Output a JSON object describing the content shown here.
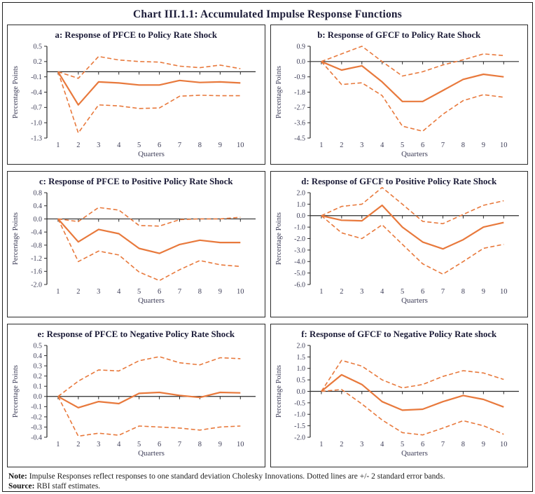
{
  "title": "Chart III.1.1: Accumulated Impulse Response Functions",
  "note": {
    "label": "Note:",
    "text": "Impulse Responses reflect responses to one standard deviation Cholesky Innovations. Dotted lines are +/- 2 standard error bands."
  },
  "source": {
    "label": "Source:",
    "text": "RBI staff estimates."
  },
  "colors": {
    "line": "#E8793C",
    "axis": "#2b2b2b",
    "title_text": "#1c1c38",
    "tick_text": "#3d3d57"
  },
  "chart_data": [
    {
      "id": "a",
      "type": "line",
      "title": "a: Response of PFCE to Policy Rate Shock",
      "xlabel": "Quarters",
      "ylabel": "Percentage Points",
      "x": [
        1,
        2,
        3,
        4,
        5,
        6,
        7,
        8,
        9,
        10
      ],
      "ylim": [
        -1.3,
        0.5
      ],
      "yticks": [
        0.5,
        0.2,
        -0.1,
        -0.4,
        -0.7,
        -1.0,
        -1.3
      ],
      "grid": false,
      "legend": "none",
      "series": [
        {
          "name": "mean",
          "style": "solid",
          "values": [
            0,
            -0.65,
            -0.2,
            -0.22,
            -0.26,
            -0.26,
            -0.17,
            -0.21,
            -0.2,
            -0.22
          ]
        },
        {
          "name": "upper-band",
          "style": "dashed",
          "values": [
            0,
            -0.13,
            0.3,
            0.23,
            0.2,
            0.19,
            0.11,
            0.08,
            0.13,
            0.06
          ]
        },
        {
          "name": "lower-band",
          "style": "dashed",
          "values": [
            0,
            -1.2,
            -0.65,
            -0.67,
            -0.72,
            -0.71,
            -0.48,
            -0.46,
            -0.47,
            -0.47
          ]
        }
      ]
    },
    {
      "id": "b",
      "type": "line",
      "title": "b: Response of GFCF to Policy Rate Shock",
      "xlabel": "Quarters",
      "ylabel": "Percentage Points",
      "x": [
        1,
        2,
        3,
        4,
        5,
        6,
        7,
        8,
        9,
        10
      ],
      "ylim": [
        -4.5,
        0.9
      ],
      "yticks": [
        0.9,
        0.0,
        -0.9,
        -1.8,
        -2.7,
        -3.6,
        -4.5
      ],
      "grid": false,
      "legend": "none",
      "series": [
        {
          "name": "mean",
          "style": "solid",
          "values": [
            0,
            -0.5,
            -0.25,
            -1.2,
            -2.35,
            -2.35,
            -1.7,
            -1.05,
            -0.75,
            -0.9
          ]
        },
        {
          "name": "upper-band",
          "style": "dashed",
          "values": [
            0,
            0.45,
            0.9,
            0.0,
            -0.85,
            -0.6,
            -0.2,
            0.1,
            0.45,
            0.35
          ]
        },
        {
          "name": "lower-band",
          "style": "dashed",
          "values": [
            0,
            -1.35,
            -1.25,
            -2.0,
            -3.8,
            -4.1,
            -3.1,
            -2.3,
            -1.95,
            -2.1
          ]
        }
      ]
    },
    {
      "id": "c",
      "type": "line",
      "title": "c: Response of PFCE to Positive Policy Rate Shock",
      "xlabel": "Quarters",
      "ylabel": "Percentage Points",
      "x": [
        1,
        2,
        3,
        4,
        5,
        6,
        7,
        8,
        9,
        10
      ],
      "ylim": [
        -2.0,
        0.8
      ],
      "yticks": [
        0.8,
        0.4,
        0.0,
        -0.4,
        -0.8,
        -1.2,
        -1.6,
        -2.0
      ],
      "grid": false,
      "legend": "none",
      "series": [
        {
          "name": "mean",
          "style": "solid",
          "values": [
            0,
            -0.7,
            -0.32,
            -0.45,
            -0.9,
            -1.05,
            -0.78,
            -0.65,
            -0.72,
            -0.72
          ]
        },
        {
          "name": "upper-band",
          "style": "dashed",
          "values": [
            0,
            -0.08,
            0.35,
            0.27,
            -0.2,
            -0.22,
            -0.02,
            0.0,
            0.0,
            0.05
          ]
        },
        {
          "name": "lower-band",
          "style": "dashed",
          "values": [
            0,
            -1.3,
            -0.98,
            -1.1,
            -1.62,
            -1.88,
            -1.55,
            -1.27,
            -1.4,
            -1.45
          ]
        }
      ]
    },
    {
      "id": "d",
      "type": "line",
      "title": "d: Response of GFCF to Positive Policy Rate Shock",
      "xlabel": "Quarters",
      "ylabel": "Percentage Points",
      "x": [
        1,
        2,
        3,
        4,
        5,
        6,
        7,
        8,
        9,
        10
      ],
      "ylim": [
        -6.0,
        2.0
      ],
      "yticks": [
        2.0,
        1.0,
        0.0,
        -1.0,
        -2.0,
        -3.0,
        -4.0,
        -5.0,
        -6.0
      ],
      "grid": false,
      "legend": "none",
      "series": [
        {
          "name": "mean",
          "style": "solid",
          "values": [
            0,
            -0.4,
            -0.45,
            0.9,
            -1.0,
            -2.3,
            -2.9,
            -2.1,
            -1.0,
            -0.6
          ]
        },
        {
          "name": "upper-band",
          "style": "dashed",
          "values": [
            0,
            0.8,
            1.0,
            2.45,
            1.0,
            -0.5,
            -0.7,
            0.1,
            0.9,
            1.3
          ]
        },
        {
          "name": "lower-band",
          "style": "dashed",
          "values": [
            0,
            -1.5,
            -2.0,
            -0.8,
            -2.5,
            -4.2,
            -5.1,
            -4.0,
            -2.85,
            -2.5
          ]
        }
      ]
    },
    {
      "id": "e",
      "type": "line",
      "title": "e: Response of PFCE to Negative Policy Rate Shock",
      "xlabel": "Quarters",
      "ylabel": "Percentage Points",
      "x": [
        1,
        2,
        3,
        4,
        5,
        6,
        7,
        8,
        9,
        10
      ],
      "ylim": [
        -0.4,
        0.5
      ],
      "yticks": [
        0.5,
        0.4,
        0.3,
        0.2,
        0.1,
        0.0,
        -0.1,
        -0.2,
        -0.3,
        -0.4
      ],
      "grid": false,
      "legend": "none",
      "series": [
        {
          "name": "mean",
          "style": "solid",
          "values": [
            0,
            -0.11,
            -0.05,
            -0.07,
            0.03,
            0.04,
            0.01,
            -0.01,
            0.04,
            0.035
          ]
        },
        {
          "name": "upper-band",
          "style": "dashed",
          "values": [
            0,
            0.15,
            0.26,
            0.25,
            0.35,
            0.39,
            0.33,
            0.31,
            0.38,
            0.37
          ]
        },
        {
          "name": "lower-band",
          "style": "dashed",
          "values": [
            0,
            -0.39,
            -0.36,
            -0.38,
            -0.29,
            -0.3,
            -0.31,
            -0.33,
            -0.3,
            -0.29
          ]
        }
      ]
    },
    {
      "id": "f",
      "type": "line",
      "title": "f: Response of GFCF to Negative Policy Rate shock",
      "xlabel": "Quarters",
      "ylabel": "Percentage Points",
      "x": [
        1,
        2,
        3,
        4,
        5,
        6,
        7,
        8,
        9,
        10
      ],
      "ylim": [
        -2.0,
        2.0
      ],
      "yticks": [
        2.0,
        1.5,
        1.0,
        0.5,
        0.0,
        -0.5,
        -1.0,
        -1.5,
        -2.0
      ],
      "grid": false,
      "legend": "none",
      "series": [
        {
          "name": "mean",
          "style": "solid",
          "values": [
            0,
            0.72,
            0.3,
            -0.45,
            -0.82,
            -0.78,
            -0.45,
            -0.18,
            -0.35,
            -0.68
          ]
        },
        {
          "name": "upper-band",
          "style": "dashed",
          "values": [
            0,
            1.35,
            1.1,
            0.5,
            0.15,
            0.3,
            0.65,
            0.9,
            0.8,
            0.52
          ]
        },
        {
          "name": "lower-band",
          "style": "dashed",
          "values": [
            0,
            0.08,
            -0.55,
            -1.25,
            -1.8,
            -1.9,
            -1.6,
            -1.28,
            -1.5,
            -1.87
          ]
        }
      ]
    }
  ]
}
